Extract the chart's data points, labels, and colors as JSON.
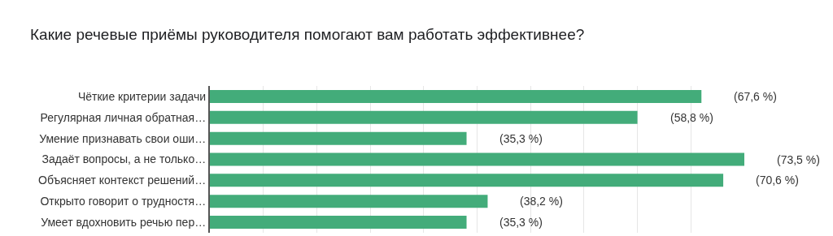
{
  "chart_data": {
    "type": "bar",
    "orientation": "horizontal",
    "title": "Какие речевые приёмы руководителя помогают вам работать эффективнее?",
    "categories": [
      "Чёткие критерии задачи",
      "Регулярная личная обратная…",
      "Умение признавать свои оши…",
      "Задаёт вопросы, а не только…",
      "Объясняет контекст решений…",
      "Открыто говорит о трудностя…",
      "Умеет вдохновить речью пер…"
    ],
    "values": [
      67.6,
      58.8,
      35.3,
      73.5,
      70.6,
      38.2,
      35.3
    ],
    "value_labels": [
      "(67,6 %)",
      "(58,8 %)",
      "(35,3 %)",
      "(73,5 %)",
      "(70,6 %)",
      "(38,2 %)",
      "(35,3 %)"
    ],
    "color": "#43ac7a",
    "xlim": [
      0,
      73.5
    ],
    "xticks": [
      {
        "value": 0,
        "label": null
      },
      {
        "value": 7.35,
        "label": null
      },
      {
        "value": 14.7,
        "label": null
      },
      {
        "value": 22.05,
        "label": null
      },
      {
        "value": 29.4,
        "label": null
      },
      {
        "value": 36.75,
        "label": null
      },
      {
        "value": 44.1,
        "label": null
      },
      {
        "value": 51.45,
        "label": null
      },
      {
        "value": 58.8,
        "label": null
      },
      {
        "value": 66.15,
        "label": null
      }
    ],
    "grid": "x"
  }
}
